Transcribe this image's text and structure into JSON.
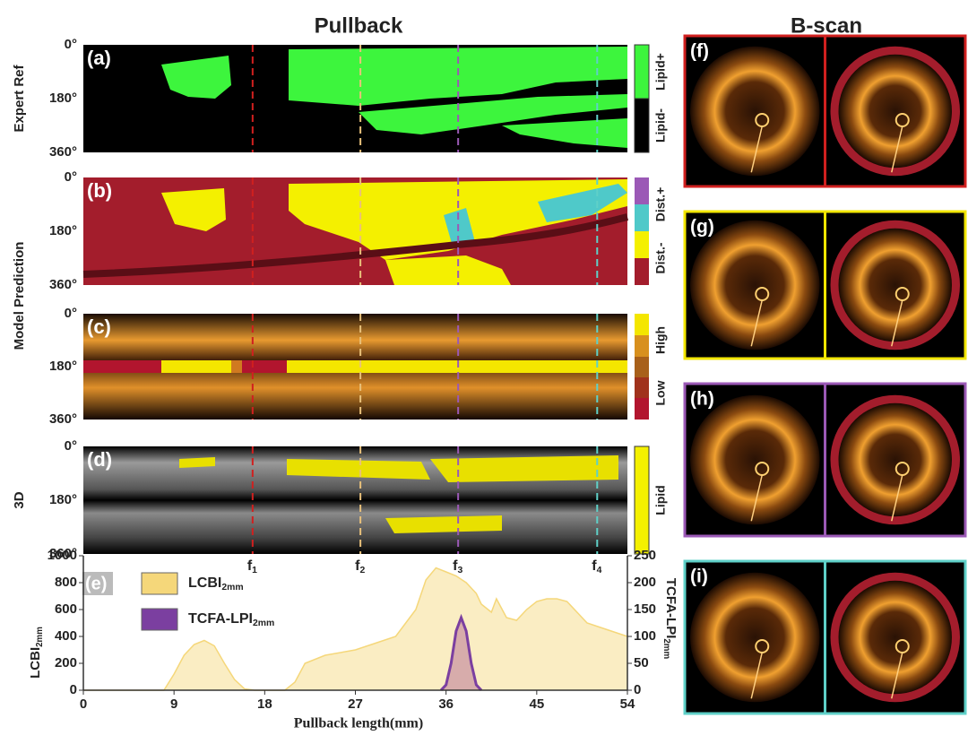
{
  "titles": {
    "pullback": "Pullback",
    "bscan": "B-scan"
  },
  "angle_ticks": [
    "0°",
    "180°",
    "360°"
  ],
  "row_labels": {
    "expert": "Expert Ref",
    "model": "Model Prediction",
    "three_d": "3D"
  },
  "panels": [
    {
      "label": "(a)",
      "colorbar": [
        "Lipid+",
        "Lipid-"
      ]
    },
    {
      "label": "(b)",
      "colorbar": [
        "Dist.+",
        "Dist.-"
      ]
    },
    {
      "label": "(c)",
      "colorbar": [
        "High",
        "Low"
      ]
    },
    {
      "label": "(d)",
      "colorbar": [
        "Lipid"
      ]
    }
  ],
  "bscans": [
    {
      "label": "(f)",
      "color": "#d0201f"
    },
    {
      "label": "(g)",
      "color": "#f2e600"
    },
    {
      "label": "(h)",
      "color": "#9b59b6"
    },
    {
      "label": "(i)",
      "color": "#5fd0c8"
    }
  ],
  "chart_data": {
    "type": "area",
    "label": "(e)",
    "x_label": "Pullback length(mm)",
    "y_label": "LCBI",
    "y_label_sub": "2mm",
    "y2_label": "TCFA-LPI",
    "y2_label_sub": "2mm",
    "xlim": [
      0,
      54
    ],
    "xticks": [
      0,
      9,
      18,
      27,
      36,
      45,
      54
    ],
    "ylim": [
      0,
      1000
    ],
    "yticks": [
      0,
      200,
      400,
      600,
      800,
      1000
    ],
    "y2lim": [
      0,
      250
    ],
    "y2ticks": [
      0,
      50,
      100,
      150,
      200,
      250
    ],
    "markers": [
      {
        "label": "f",
        "sub": "1",
        "x": 16.8,
        "color": "#d0201f"
      },
      {
        "label": "f",
        "sub": "2",
        "x": 27.5,
        "color": "#e8c07a"
      },
      {
        "label": "f",
        "sub": "3",
        "x": 37.2,
        "color": "#9b59b6"
      },
      {
        "label": "f",
        "sub": "4",
        "x": 51,
        "color": "#5fd0c8"
      }
    ],
    "series": [
      {
        "name": "LCBI",
        "name_sub": "2mm",
        "color": "#f5d77a",
        "x": [
          0,
          8,
          9,
          10,
          11,
          12,
          13,
          14,
          15,
          16,
          17,
          20,
          21,
          22,
          24,
          27,
          29,
          31,
          33,
          34,
          35,
          36,
          37,
          38,
          39,
          39.5,
          40.5,
          41,
          42,
          43,
          44,
          45,
          46,
          47,
          48,
          50,
          52,
          54
        ],
        "values": [
          0,
          0,
          120,
          260,
          340,
          370,
          330,
          200,
          80,
          10,
          0,
          0,
          60,
          200,
          260,
          300,
          350,
          400,
          600,
          820,
          910,
          880,
          850,
          800,
          720,
          640,
          580,
          680,
          540,
          520,
          600,
          660,
          680,
          680,
          660,
          500,
          450,
          400
        ]
      },
      {
        "name": "TCFA-LPI",
        "name_sub": "2mm",
        "color": "#7b3fa0",
        "axis": "y2",
        "x": [
          35.5,
          36,
          36.5,
          37,
          37.5,
          38,
          38.5,
          39,
          39.5
        ],
        "values": [
          0,
          10,
          50,
          110,
          135,
          110,
          50,
          10,
          0
        ]
      }
    ]
  }
}
